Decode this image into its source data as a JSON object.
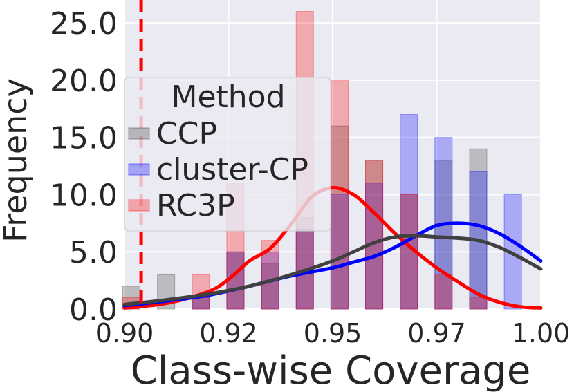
{
  "chart_data": {
    "type": "histogram",
    "title": "",
    "xlabel": "Class-wise Coverage",
    "ylabel": "Frequency",
    "xlim": [
      0.9,
      1.0
    ],
    "ylim": [
      0,
      27
    ],
    "x_ticks": [
      0.9,
      0.925,
      0.95,
      0.975,
      1.0
    ],
    "x_tick_labels": [
      "0.90",
      "0.92",
      "0.95",
      "0.97",
      "1.00"
    ],
    "y_ticks": [
      0,
      5,
      10,
      15,
      20,
      25
    ],
    "y_tick_labels": [
      "0.0",
      "5.0",
      "10.0",
      "15.0",
      "20.0",
      "25.0"
    ],
    "grid": true,
    "background": "#eaeaf2",
    "legend": {
      "title": "Method",
      "placement": "upper-left",
      "entries": [
        "CCP",
        "cluster-CP",
        "RC3P"
      ]
    },
    "reference_line": {
      "x": 0.904,
      "color": "#ff0000",
      "style": "dashed"
    },
    "bins": {
      "start": 0.8975,
      "width": 0.00833,
      "count": 12
    },
    "series": [
      {
        "name": "CCP",
        "color": "#404040",
        "counts": [
          2,
          3,
          1,
          5,
          4,
          8,
          16,
          13,
          10,
          13,
          14,
          0
        ],
        "kde": [
          [
            0.9,
            0.4
          ],
          [
            0.91,
            0.8
          ],
          [
            0.92,
            1.3
          ],
          [
            0.93,
            2.0
          ],
          [
            0.94,
            3.0
          ],
          [
            0.95,
            4.2
          ],
          [
            0.955,
            5.0
          ],
          [
            0.96,
            5.8
          ],
          [
            0.965,
            6.3
          ],
          [
            0.97,
            6.4
          ],
          [
            0.975,
            6.3
          ],
          [
            0.98,
            6.2
          ],
          [
            0.985,
            6.0
          ],
          [
            0.99,
            5.4
          ],
          [
            0.995,
            4.5
          ],
          [
            1.0,
            3.5
          ]
        ]
      },
      {
        "name": "cluster-CP",
        "color": "#0000ff",
        "counts": [
          0,
          0,
          1,
          5,
          5,
          7,
          10,
          11,
          17,
          15,
          12,
          10
        ],
        "kde": [
          [
            0.9,
            0.3
          ],
          [
            0.91,
            0.7
          ],
          [
            0.92,
            1.2
          ],
          [
            0.93,
            2.0
          ],
          [
            0.94,
            2.9
          ],
          [
            0.95,
            3.6
          ],
          [
            0.955,
            4.1
          ],
          [
            0.96,
            4.6
          ],
          [
            0.965,
            5.4
          ],
          [
            0.97,
            6.4
          ],
          [
            0.975,
            7.3
          ],
          [
            0.98,
            7.5
          ],
          [
            0.985,
            7.3
          ],
          [
            0.99,
            6.6
          ],
          [
            0.995,
            5.5
          ],
          [
            1.0,
            4.2
          ]
        ]
      },
      {
        "name": "RC3P",
        "color": "#ff0000",
        "counts": [
          1,
          0,
          3,
          11,
          6,
          26,
          20,
          13,
          10,
          3,
          1,
          0
        ],
        "kde": [
          [
            0.9,
            0.1
          ],
          [
            0.91,
            0.5
          ],
          [
            0.92,
            1.5
          ],
          [
            0.925,
            2.6
          ],
          [
            0.93,
            4.2
          ],
          [
            0.935,
            5.3
          ],
          [
            0.94,
            7.4
          ],
          [
            0.945,
            9.8
          ],
          [
            0.95,
            10.6
          ],
          [
            0.955,
            10.0
          ],
          [
            0.96,
            8.4
          ],
          [
            0.965,
            6.6
          ],
          [
            0.97,
            5.0
          ],
          [
            0.975,
            3.6
          ],
          [
            0.98,
            2.4
          ],
          [
            0.985,
            1.3
          ],
          [
            0.99,
            0.6
          ],
          [
            0.995,
            0.2
          ],
          [
            1.0,
            0.1
          ]
        ]
      }
    ]
  }
}
